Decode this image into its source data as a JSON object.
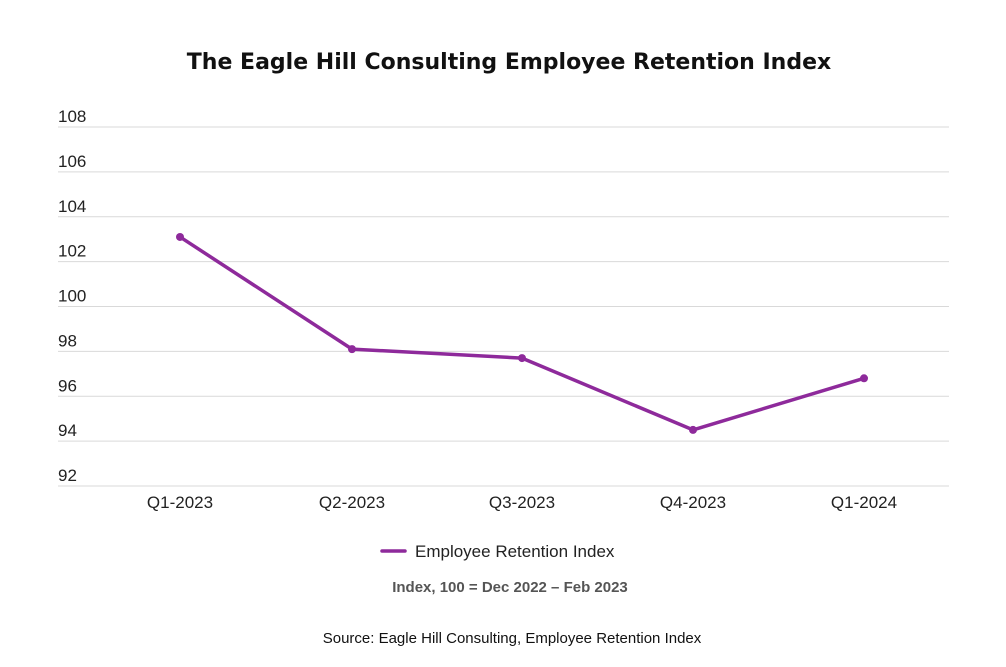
{
  "colors": {
    "series": "#8e2a9b",
    "grid": "#d9d9d9",
    "text": "#222222"
  },
  "chart_data": {
    "type": "line",
    "title": "The Eagle Hill Consulting Employee Retention Index",
    "categories": [
      "Q1-2023",
      "Q2-2023",
      "Q3-2023",
      "Q4-2023",
      "Q1-2024"
    ],
    "series": [
      {
        "name": "Employee Retention Index",
        "values": [
          103.1,
          98.1,
          97.7,
          94.5,
          96.8
        ]
      }
    ],
    "ylim": [
      92,
      108
    ],
    "yticks": [
      92,
      94,
      96,
      98,
      100,
      102,
      104,
      106,
      108
    ],
    "ytick_labels": [
      "92",
      "94",
      "96",
      "98",
      "100",
      "102",
      "104",
      "106",
      "108"
    ],
    "grid": true,
    "legend": "bottom-center",
    "note": "Index, 100 = Dec 2022 – Feb 2023",
    "source": "Source: Eagle Hill Consulting, Employee Retention Index"
  }
}
